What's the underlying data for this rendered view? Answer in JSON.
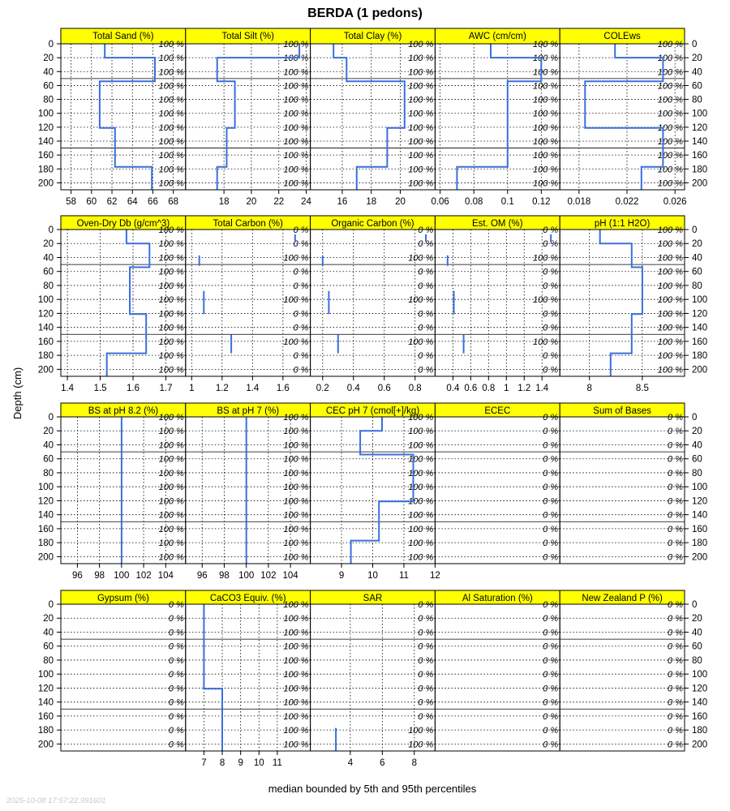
{
  "figure": {
    "title": "BERDA (1 pedons)",
    "xlabel": "median bounded by 5th and 95th percentiles",
    "ylabel": "Depth (cm)",
    "timestamp": "2025-10-08 17:57:22.991601"
  },
  "colors": {
    "strip_fill": "#ffff00",
    "line": "#3b6fdd",
    "frame": "#000000"
  },
  "chart_data": {
    "type": "line",
    "depth_axis": {
      "ylim": [
        0,
        210
      ],
      "ticks": [
        0,
        20,
        40,
        60,
        80,
        100,
        120,
        140,
        160,
        180,
        200
      ],
      "reversed": true
    },
    "pct_depths": [
      0,
      20,
      40,
      60,
      80,
      100,
      120,
      140,
      160,
      180,
      200
    ],
    "panels": [
      {
        "title": "Total Sand (%)",
        "xlim": [
          57,
          69.2
        ],
        "ticks": [
          58,
          60,
          62,
          64,
          66,
          68
        ],
        "pct": [
          "100 %",
          "100 %",
          "100 %",
          "100 %",
          "100 %",
          "100 %",
          "100 %",
          "100 %",
          "100 %",
          "100 %",
          "100 %"
        ],
        "segments": [
          [
            [
              61.3,
              0
            ],
            [
              61.3,
              20
            ],
            [
              66.2,
              20
            ],
            [
              66.2,
              54
            ],
            [
              60.8,
              54
            ],
            [
              60.8,
              121
            ],
            [
              62.3,
              121
            ],
            [
              62.3,
              177
            ],
            [
              65.9,
              177
            ],
            [
              65.9,
              210
            ]
          ]
        ]
      },
      {
        "title": "Total Silt (%)",
        "xlim": [
          15.2,
          24.3
        ],
        "ticks": [
          18,
          20,
          22,
          24
        ],
        "pct": [
          "100 %",
          "100 %",
          "100 %",
          "100 %",
          "100 %",
          "100 %",
          "100 %",
          "100 %",
          "100 %",
          "100 %",
          "100 %"
        ],
        "segments": [
          [
            [
              23.5,
              0
            ],
            [
              23.5,
              20
            ],
            [
              17.5,
              20
            ],
            [
              17.5,
              54
            ],
            [
              18.8,
              54
            ],
            [
              18.8,
              121
            ],
            [
              18.2,
              121
            ],
            [
              18.2,
              177
            ],
            [
              17.5,
              177
            ],
            [
              17.5,
              210
            ]
          ]
        ]
      },
      {
        "title": "Total Clay (%)",
        "xlim": [
          13.8,
          22.4
        ],
        "ticks": [
          16,
          18,
          20
        ],
        "pct": [
          "100 %",
          "100 %",
          "100 %",
          "100 %",
          "100 %",
          "100 %",
          "100 %",
          "100 %",
          "100 %",
          "100 %",
          "100 %"
        ],
        "segments": [
          [
            [
              15.4,
              0
            ],
            [
              15.4,
              20
            ],
            [
              16.3,
              20
            ],
            [
              16.3,
              54
            ],
            [
              20.3,
              54
            ],
            [
              20.3,
              121
            ],
            [
              19.1,
              121
            ],
            [
              19.1,
              177
            ],
            [
              17.0,
              177
            ],
            [
              17.0,
              210
            ]
          ]
        ]
      },
      {
        "title": "AWC (cm/cm)",
        "xlim": [
          0.057,
          0.131
        ],
        "ticks": [
          0.06,
          0.08,
          0.1,
          0.12
        ],
        "pct": [
          "100 %",
          "100 %",
          "100 %",
          "100 %",
          "100 %",
          "100 %",
          "100 %",
          "100 %",
          "100 %",
          "100 %",
          "100 %"
        ],
        "segments": [
          [
            [
              0.09,
              0
            ],
            [
              0.09,
              20
            ],
            [
              0.12,
              20
            ],
            [
              0.12,
              54
            ],
            [
              0.1,
              54
            ],
            [
              0.1,
              177
            ],
            [
              0.07,
              177
            ],
            [
              0.07,
              210
            ]
          ]
        ]
      },
      {
        "title": "COLEws",
        "xlim": [
          0.0164,
          0.0268
        ],
        "ticks": [
          0.018,
          0.022,
          0.026
        ],
        "pct": [
          "100 %",
          "100 %",
          "100 %",
          "100 %",
          "100 %",
          "100 %",
          "100 %",
          "100 %",
          "100 %",
          "100 %",
          "100 %"
        ],
        "segments": [
          [
            [
              0.021,
              0
            ],
            [
              0.021,
              20
            ],
            [
              0.025,
              20
            ],
            [
              0.025,
              54
            ],
            [
              0.0185,
              54
            ],
            [
              0.0185,
              121
            ],
            [
              0.025,
              121
            ],
            [
              0.025,
              177
            ],
            [
              0.0232,
              177
            ],
            [
              0.0232,
              210
            ]
          ]
        ]
      },
      {
        "title": "Oven-Dry Db (g/cm^3)",
        "xlim": [
          1.38,
          1.76
        ],
        "ticks": [
          1.4,
          1.5,
          1.6,
          1.7
        ],
        "pct": [
          "100 %",
          "100 %",
          "100 %",
          "100 %",
          "100 %",
          "100 %",
          "100 %",
          "100 %",
          "100 %",
          "100 %",
          "100 %"
        ],
        "segments": [
          [
            [
              1.58,
              0
            ],
            [
              1.58,
              20
            ],
            [
              1.65,
              20
            ],
            [
              1.65,
              54
            ],
            [
              1.59,
              54
            ],
            [
              1.59,
              121
            ],
            [
              1.64,
              121
            ],
            [
              1.64,
              177
            ],
            [
              1.52,
              177
            ],
            [
              1.52,
              210
            ]
          ]
        ]
      },
      {
        "title": "Total Carbon (%)",
        "xlim": [
          0.96,
          1.78
        ],
        "ticks": [
          1.0,
          1.2,
          1.4,
          1.6
        ],
        "pct": [
          "0 %",
          "0 %",
          "100 %",
          "0 %",
          "0 %",
          "100 %",
          "0 %",
          "0 %",
          "100 %",
          "0 %",
          "0 %"
        ],
        "segments": [
          [
            [
              1.68,
              7
            ],
            [
              1.68,
              18
            ]
          ],
          [
            [
              1.05,
              37
            ],
            [
              1.05,
              52
            ]
          ],
          [
            [
              1.08,
              88
            ],
            [
              1.08,
              121
            ]
          ],
          [
            [
              1.26,
              150
            ],
            [
              1.26,
              177
            ]
          ]
        ]
      },
      {
        "title": "Organic Carbon (%)",
        "xlim": [
          0.12,
          0.93
        ],
        "ticks": [
          0.2,
          0.4,
          0.6,
          0.8
        ],
        "pct": [
          "0 %",
          "0 %",
          "100 %",
          "0 %",
          "0 %",
          "100 %",
          "0 %",
          "0 %",
          "100 %",
          "0 %",
          "0 %"
        ],
        "segments": [
          [
            [
              0.87,
              7
            ],
            [
              0.87,
              18
            ]
          ],
          [
            [
              0.2,
              37
            ],
            [
              0.2,
              52
            ]
          ],
          [
            [
              0.24,
              88
            ],
            [
              0.24,
              121
            ]
          ],
          [
            [
              0.3,
              150
            ],
            [
              0.3,
              177
            ]
          ]
        ]
      },
      {
        "title": "Est. OM (%)",
        "xlim": [
          0.2,
          1.6
        ],
        "ticks": [
          0.4,
          0.6,
          0.8,
          1.0,
          1.2,
          1.4
        ],
        "pct": [
          "0 %",
          "0 %",
          "100 %",
          "0 %",
          "0 %",
          "100 %",
          "0 %",
          "0 %",
          "100 %",
          "0 %",
          "0 %"
        ],
        "segments": [
          [
            [
              1.5,
              7
            ],
            [
              1.5,
              18
            ]
          ],
          [
            [
              0.34,
              37
            ],
            [
              0.34,
              52
            ]
          ],
          [
            [
              0.41,
              88
            ],
            [
              0.41,
              121
            ]
          ],
          [
            [
              0.52,
              150
            ],
            [
              0.52,
              177
            ]
          ]
        ]
      },
      {
        "title": "pH (1:1 H2O)",
        "xlim": [
          7.72,
          8.9
        ],
        "ticks": [
          8.0,
          8.5
        ],
        "pct": [
          "100 %",
          "100 %",
          "100 %",
          "100 %",
          "100 %",
          "100 %",
          "100 %",
          "100 %",
          "100 %",
          "100 %",
          "100 %"
        ],
        "segments": [
          [
            [
              8.1,
              0
            ],
            [
              8.1,
              20
            ],
            [
              8.4,
              20
            ],
            [
              8.4,
              54
            ],
            [
              8.5,
              54
            ],
            [
              8.5,
              121
            ],
            [
              8.4,
              121
            ],
            [
              8.4,
              177
            ],
            [
              8.2,
              177
            ],
            [
              8.2,
              210
            ]
          ]
        ]
      },
      {
        "title": "BS at pH 8.2 (%)",
        "xlim": [
          94.5,
          105.8
        ],
        "ticks": [
          96,
          98,
          100,
          102,
          104
        ],
        "pct": [
          "100 %",
          "100 %",
          "100 %",
          "100 %",
          "100 %",
          "100 %",
          "100 %",
          "100 %",
          "100 %",
          "100 %",
          "100 %"
        ],
        "segments": [
          [
            [
              100,
              0
            ],
            [
              100,
              210
            ]
          ]
        ]
      },
      {
        "title": "BS at pH 7 (%)",
        "xlim": [
          94.5,
          105.8
        ],
        "ticks": [
          96,
          98,
          100,
          102,
          104
        ],
        "pct": [
          "100 %",
          "100 %",
          "100 %",
          "100 %",
          "100 %",
          "100 %",
          "100 %",
          "100 %",
          "100 %",
          "100 %",
          "100 %"
        ],
        "segments": [
          [
            [
              100,
              0
            ],
            [
              100,
              210
            ]
          ]
        ]
      },
      {
        "title": "CEC pH 7 (cmol[+]/kg)",
        "xlim": [
          8.0,
          12.0
        ],
        "ticks": [
          9,
          10,
          11,
          12
        ],
        "pct": [
          "100 %",
          "100 %",
          "100 %",
          "100 %",
          "100 %",
          "100 %",
          "100 %",
          "100 %",
          "100 %",
          "100 %",
          "100 %"
        ],
        "segments": [
          [
            [
              10.3,
              0
            ],
            [
              10.3,
              20
            ],
            [
              9.6,
              20
            ],
            [
              9.6,
              54
            ],
            [
              11.3,
              54
            ],
            [
              11.3,
              121
            ],
            [
              10.2,
              121
            ],
            [
              10.2,
              177
            ],
            [
              9.3,
              177
            ],
            [
              9.3,
              210
            ]
          ]
        ]
      },
      {
        "title": "ECEC",
        "xlim": [
          0,
          1
        ],
        "ticks": [],
        "pct": [
          "0 %",
          "0 %",
          "0 %",
          "0 %",
          "0 %",
          "0 %",
          "0 %",
          "0 %",
          "0 %",
          "0 %",
          "0 %"
        ],
        "segments": []
      },
      {
        "title": "Sum of Bases",
        "xlim": [
          0,
          1
        ],
        "ticks": [],
        "pct": [
          "0 %",
          "0 %",
          "0 %",
          "0 %",
          "0 %",
          "0 %",
          "0 %",
          "0 %",
          "0 %",
          "0 %",
          "0 %"
        ],
        "segments": []
      },
      {
        "title": "Gypsum (%)",
        "xlim": [
          0,
          1
        ],
        "ticks": [],
        "pct": [
          "0 %",
          "0 %",
          "0 %",
          "0 %",
          "0 %",
          "0 %",
          "0 %",
          "0 %",
          "0 %",
          "0 %",
          "0 %"
        ],
        "segments": []
      },
      {
        "title": "CaCO3 Equiv. (%)",
        "xlim": [
          6.0,
          12.8
        ],
        "ticks": [
          7,
          8,
          9,
          10,
          11
        ],
        "pct": [
          "100 %",
          "100 %",
          "100 %",
          "100 %",
          "100 %",
          "100 %",
          "100 %",
          "100 %",
          "100 %",
          "100 %",
          "100 %"
        ],
        "segments": [
          [
            [
              7.0,
              0
            ],
            [
              7.0,
              121
            ],
            [
              8.0,
              121
            ],
            [
              8.0,
              210
            ]
          ]
        ]
      },
      {
        "title": "SAR",
        "xlim": [
          1.5,
          9.3
        ],
        "ticks": [
          4,
          6,
          8
        ],
        "pct": [
          "0 %",
          "0 %",
          "0 %",
          "0 %",
          "0 %",
          "0 %",
          "0 %",
          "0 %",
          "0 %",
          "100 %",
          "100 %"
        ],
        "segments": [
          [
            [
              3.1,
              177
            ],
            [
              3.1,
              210
            ]
          ]
        ]
      },
      {
        "title": "Al Saturation (%)",
        "xlim": [
          0,
          1
        ],
        "ticks": [],
        "pct": [
          "0 %",
          "0 %",
          "0 %",
          "0 %",
          "0 %",
          "0 %",
          "0 %",
          "0 %",
          "0 %",
          "0 %",
          "0 %"
        ],
        "segments": []
      },
      {
        "title": "New Zealand P (%)",
        "xlim": [
          0,
          1
        ],
        "ticks": [],
        "pct": [
          "0 %",
          "0 %",
          "0 %",
          "0 %",
          "0 %",
          "0 %",
          "0 %",
          "0 %",
          "0 %",
          "0 %",
          "0 %"
        ],
        "segments": []
      }
    ]
  }
}
